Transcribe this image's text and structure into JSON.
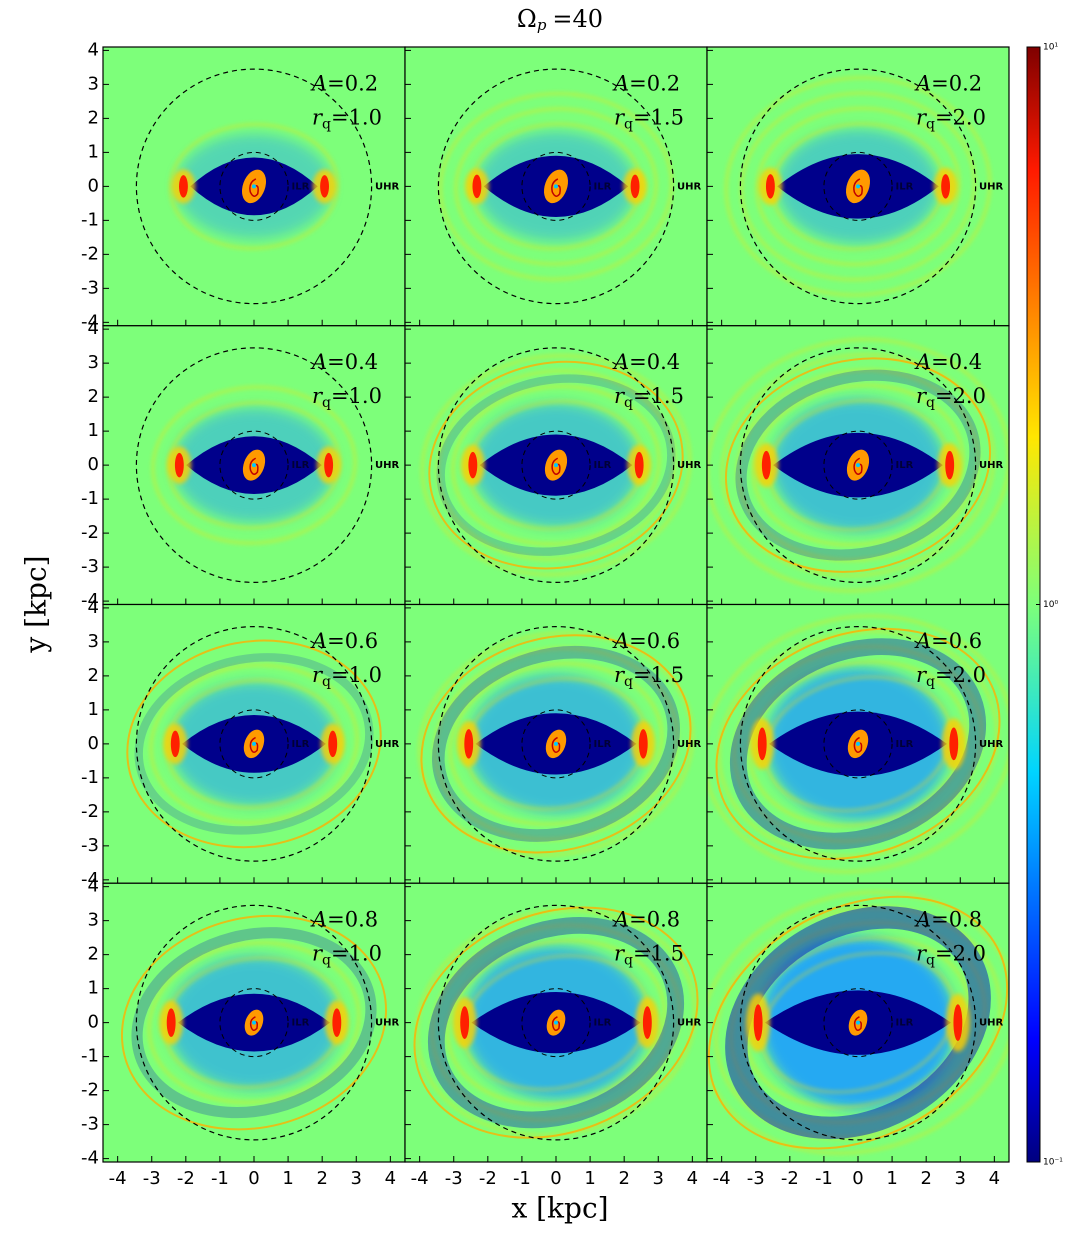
{
  "chart_data": {
    "type": "density_map_grid",
    "title_symbol": "Ω",
    "title_subscript": "p",
    "equals": "=",
    "title_value": 40,
    "x_label": "x [kpc]",
    "y_label": "y [kpc]",
    "xlim": [
      -4.43,
      4.43
    ],
    "ylim": [
      -4.1,
      4.1
    ],
    "xticks": [
      -4,
      -3,
      -2,
      -1,
      0,
      1,
      2,
      3,
      4
    ],
    "yticks": [
      -4,
      -3,
      -2,
      -1,
      0,
      1,
      2,
      3,
      4
    ],
    "A_symbol": "A",
    "rq_symbol": "r",
    "rq_subscript": "q",
    "uhr_label": "UHR",
    "ilr_label": "ILR",
    "panels": [
      {
        "A": 0.2,
        "rq": "1.0"
      },
      {
        "A": 0.2,
        "rq": "1.5"
      },
      {
        "A": 0.2,
        "rq": "2.0"
      },
      {
        "A": 0.4,
        "rq": "1.0"
      },
      {
        "A": 0.4,
        "rq": "1.5"
      },
      {
        "A": 0.4,
        "rq": "2.0"
      },
      {
        "A": 0.6,
        "rq": "1.0"
      },
      {
        "A": 0.6,
        "rq": "1.5"
      },
      {
        "A": 0.6,
        "rq": "2.0"
      },
      {
        "A": 0.8,
        "rq": "1.0"
      },
      {
        "A": 0.8,
        "rq": "1.5"
      },
      {
        "A": 0.8,
        "rq": "2.0"
      }
    ],
    "colorbar": {
      "log": true,
      "lim": [
        0.1,
        10
      ],
      "ticks": [
        {
          "value": 10,
          "label": "10¹"
        },
        {
          "value": 1,
          "label": "10⁰"
        },
        {
          "value": 0.1,
          "label": "10⁻¹"
        }
      ]
    }
  }
}
